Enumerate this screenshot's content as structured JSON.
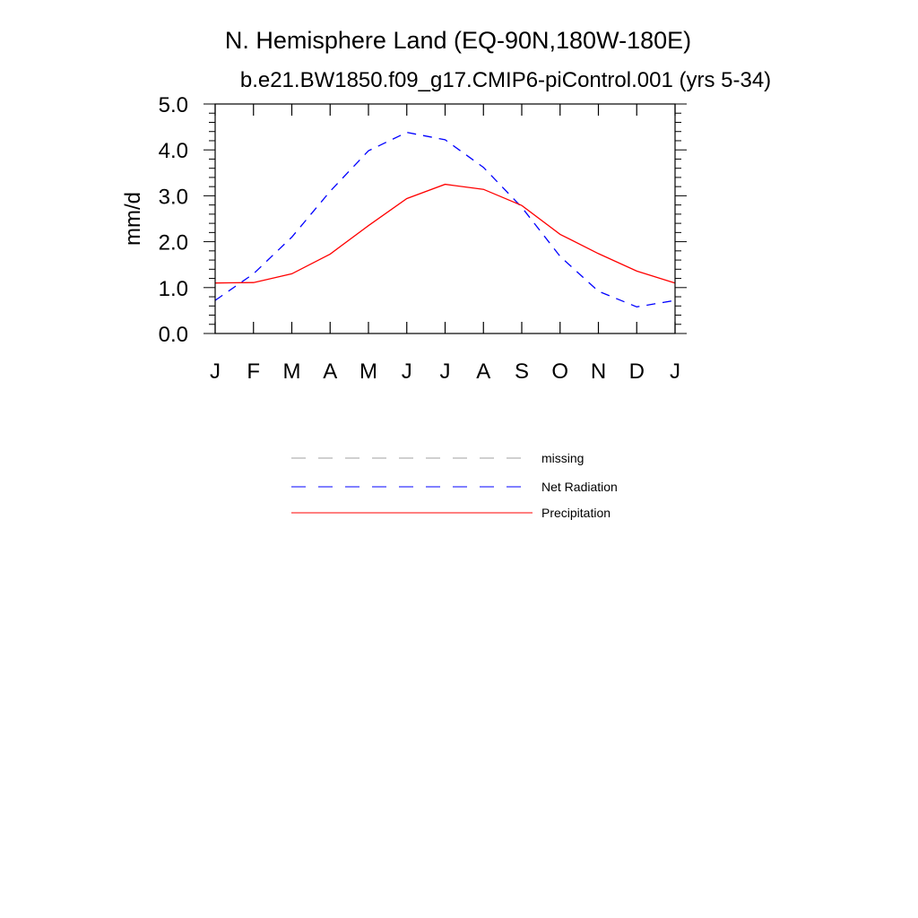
{
  "chart_data": {
    "type": "line",
    "title": "N. Hemisphere Land (EQ-90N,180W-180E)",
    "subtitle": "b.e21.BW1850.f09_g17.CMIP6-piControl.001 (yrs 5-34)",
    "xlabel": "",
    "ylabel": "mm/d",
    "ylim": [
      0,
      5
    ],
    "yticks": [
      "0.0",
      "1.0",
      "2.0",
      "3.0",
      "4.0",
      "5.0"
    ],
    "categories": [
      "J",
      "F",
      "M",
      "A",
      "M",
      "J",
      "J",
      "A",
      "S",
      "O",
      "N",
      "D",
      "J"
    ],
    "series": [
      {
        "name": "Net Radiation",
        "color": "#0000ff",
        "dash": "dashed",
        "values": [
          0.72,
          1.3,
          2.1,
          3.1,
          3.98,
          4.38,
          4.22,
          3.62,
          2.75,
          1.68,
          0.92,
          0.58,
          0.72
        ]
      },
      {
        "name": "Precipitation",
        "color": "#ff0000",
        "dash": "solid",
        "values": [
          1.1,
          1.11,
          1.3,
          1.73,
          2.35,
          2.94,
          3.25,
          3.14,
          2.79,
          2.16,
          1.74,
          1.36,
          1.1
        ]
      }
    ],
    "legend": {
      "position": "bottom-center",
      "entries": [
        {
          "label": "missing",
          "color": "#a0a0a0",
          "dash": "dashed"
        },
        {
          "label": "Net Radiation",
          "color": "#0000ff",
          "dash": "dashed"
        },
        {
          "label": "Precipitation",
          "color": "#ff0000",
          "dash": "solid"
        }
      ]
    }
  }
}
